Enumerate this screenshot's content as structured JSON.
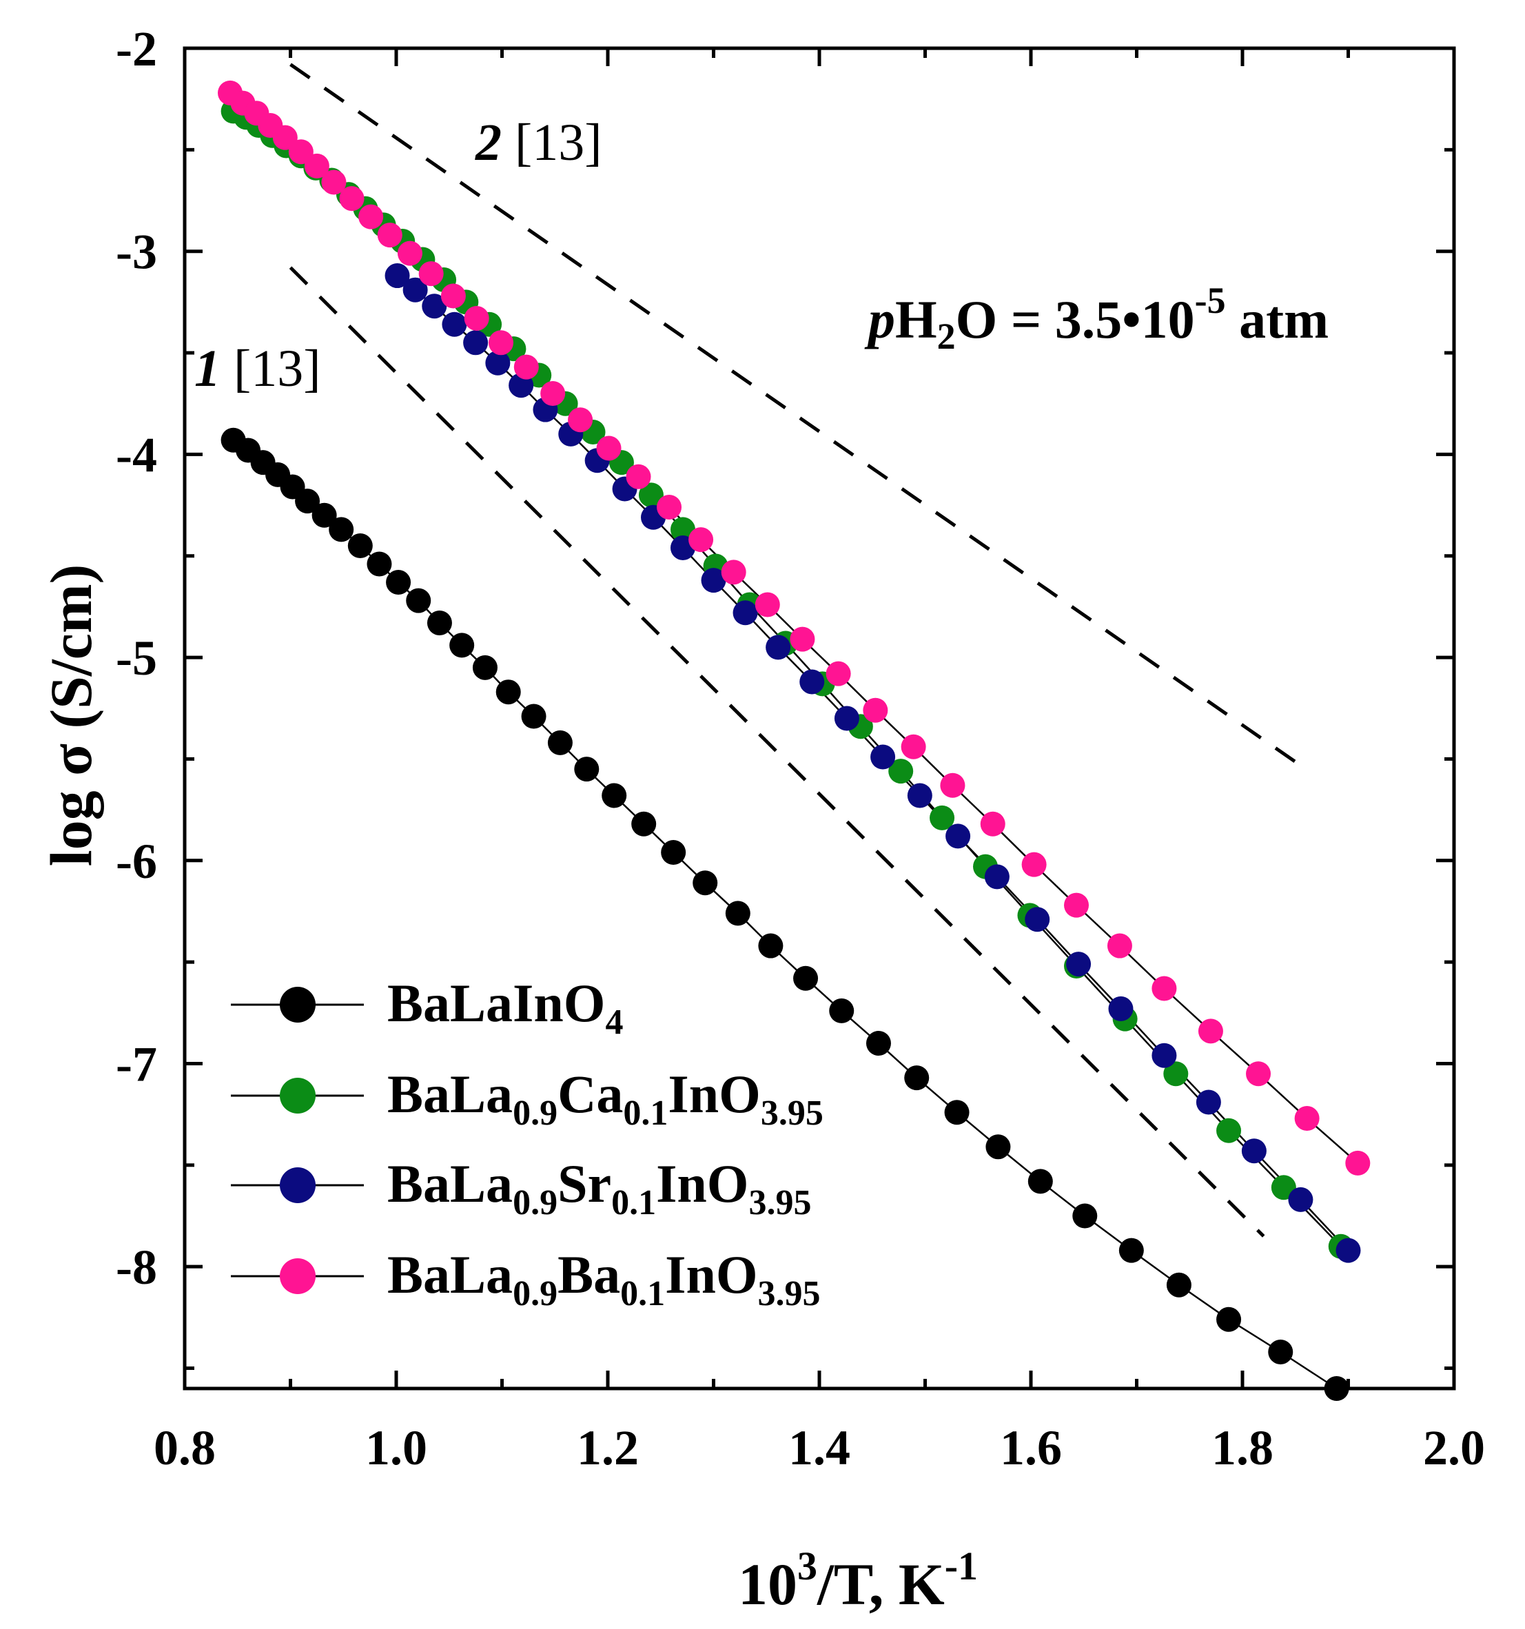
{
  "chart_data": {
    "type": "scatter",
    "xlabel": "10³/T, K⁻¹",
    "ylabel": "log σ (S/cm)",
    "xlim": [
      0.8,
      2.0
    ],
    "ylim": [
      -8.6,
      -2.0
    ],
    "xticks": [
      "0.8",
      "1.0",
      "1.2",
      "1.4",
      "1.6",
      "1.8",
      "2.0"
    ],
    "yticks": [
      "-2",
      "-3",
      "-4",
      "-5",
      "-6",
      "-7",
      "-8"
    ],
    "condition": {
      "prefix": "p",
      "species": "H",
      "sub": "2",
      "species2": "O",
      "eq": " = 3.5•10",
      "exp": "-5",
      "unit": " atm"
    },
    "series": [
      {
        "name": "BaLaInO4",
        "base": "BaLaInO",
        "sub": "4",
        "color": "#000000",
        "x": [
          0.846,
          0.86,
          0.874,
          0.888,
          0.902,
          0.916,
          0.932,
          0.948,
          0.966,
          0.984,
          1.002,
          1.021,
          1.041,
          1.062,
          1.084,
          1.106,
          1.13,
          1.155,
          1.18,
          1.206,
          1.234,
          1.262,
          1.292,
          1.323,
          1.354,
          1.387,
          1.421,
          1.456,
          1.492,
          1.53,
          1.569,
          1.609,
          1.651,
          1.695,
          1.74,
          1.787,
          1.836,
          1.889
        ],
        "y": [
          -3.93,
          -3.98,
          -4.04,
          -4.1,
          -4.16,
          -4.23,
          -4.3,
          -4.37,
          -4.45,
          -4.54,
          -4.63,
          -4.72,
          -4.83,
          -4.94,
          -5.05,
          -5.17,
          -5.29,
          -5.42,
          -5.55,
          -5.68,
          -5.82,
          -5.96,
          -6.11,
          -6.26,
          -6.42,
          -6.58,
          -6.74,
          -6.9,
          -7.07,
          -7.24,
          -7.41,
          -7.58,
          -7.75,
          -7.92,
          -8.09,
          -8.26,
          -8.42,
          -8.6
        ]
      },
      {
        "name": "BaLa0.9Ca0.1InO3.95",
        "base": "BaLa",
        "sub": "0.9",
        "mid": "Ca",
        "sub2": "0.1",
        "end": "InO",
        "sub3": "3.95",
        "color": "#0b8c16",
        "x": [
          0.846,
          0.858,
          0.87,
          0.883,
          0.896,
          0.91,
          0.924,
          0.939,
          0.955,
          0.971,
          0.988,
          1.006,
          1.025,
          1.045,
          1.066,
          1.088,
          1.111,
          1.135,
          1.16,
          1.186,
          1.213,
          1.241,
          1.271,
          1.302,
          1.334,
          1.368,
          1.403,
          1.439,
          1.477,
          1.516,
          1.557,
          1.599,
          1.643,
          1.689,
          1.737,
          1.787,
          1.839,
          1.893
        ],
        "y": [
          -2.31,
          -2.34,
          -2.38,
          -2.43,
          -2.48,
          -2.53,
          -2.59,
          -2.65,
          -2.72,
          -2.79,
          -2.87,
          -2.95,
          -3.04,
          -3.14,
          -3.25,
          -3.36,
          -3.48,
          -3.61,
          -3.75,
          -3.89,
          -4.04,
          -4.2,
          -4.37,
          -4.55,
          -4.74,
          -4.93,
          -5.13,
          -5.34,
          -5.56,
          -5.79,
          -6.03,
          -6.27,
          -6.52,
          -6.78,
          -7.05,
          -7.33,
          -7.61,
          -7.9
        ]
      },
      {
        "name": "BaLa0.9Sr0.1InO3.95",
        "base": "BaLa",
        "sub": "0.9",
        "mid": "Sr",
        "sub2": "0.1",
        "end": "InO",
        "sub3": "3.95",
        "color": "#0b0b80",
        "x": [
          1.001,
          1.018,
          1.036,
          1.055,
          1.075,
          1.096,
          1.118,
          1.141,
          1.165,
          1.19,
          1.216,
          1.243,
          1.271,
          1.3,
          1.33,
          1.361,
          1.393,
          1.426,
          1.46,
          1.495,
          1.531,
          1.568,
          1.606,
          1.645,
          1.685,
          1.726,
          1.768,
          1.811,
          1.855,
          1.9
        ],
        "y": [
          -3.12,
          -3.19,
          -3.27,
          -3.36,
          -3.45,
          -3.55,
          -3.66,
          -3.78,
          -3.9,
          -4.03,
          -4.17,
          -4.31,
          -4.46,
          -4.62,
          -4.78,
          -4.95,
          -5.12,
          -5.3,
          -5.49,
          -5.68,
          -5.88,
          -6.08,
          -6.29,
          -6.51,
          -6.73,
          -6.96,
          -7.19,
          -7.43,
          -7.67,
          -7.92
        ]
      },
      {
        "name": "BaLa0.9Ba0.1InO3.95",
        "base": "BaLa",
        "sub": "0.9",
        "mid": "Ba",
        "sub2": "0.1",
        "end": "InO",
        "sub3": "3.95",
        "color": "#ff1493",
        "x": [
          0.843,
          0.855,
          0.868,
          0.881,
          0.895,
          0.91,
          0.925,
          0.941,
          0.958,
          0.976,
          0.994,
          1.013,
          1.033,
          1.054,
          1.076,
          1.099,
          1.123,
          1.148,
          1.174,
          1.201,
          1.229,
          1.258,
          1.288,
          1.319,
          1.351,
          1.384,
          1.418,
          1.453,
          1.489,
          1.526,
          1.564,
          1.603,
          1.643,
          1.684,
          1.726,
          1.77,
          1.815,
          1.861,
          1.909
        ],
        "y": [
          -2.22,
          -2.27,
          -2.32,
          -2.38,
          -2.44,
          -2.51,
          -2.58,
          -2.66,
          -2.74,
          -2.83,
          -2.92,
          -3.01,
          -3.11,
          -3.22,
          -3.33,
          -3.45,
          -3.57,
          -3.7,
          -3.83,
          -3.97,
          -4.11,
          -4.26,
          -4.42,
          -4.58,
          -4.74,
          -4.91,
          -5.08,
          -5.26,
          -5.44,
          -5.63,
          -5.82,
          -6.02,
          -6.22,
          -6.42,
          -6.63,
          -6.84,
          -7.05,
          -7.27,
          -7.49
        ]
      }
    ],
    "reference_lines": [
      {
        "label_num": "1",
        "label_ref": " [13]",
        "x": [
          0.9,
          1.82
        ],
        "y": [
          -3.08,
          -7.85
        ]
      },
      {
        "label_num": "2",
        "label_ref": " [13]",
        "x": [
          0.9,
          1.86
        ],
        "y": [
          -2.08,
          -5.55
        ]
      }
    ]
  }
}
